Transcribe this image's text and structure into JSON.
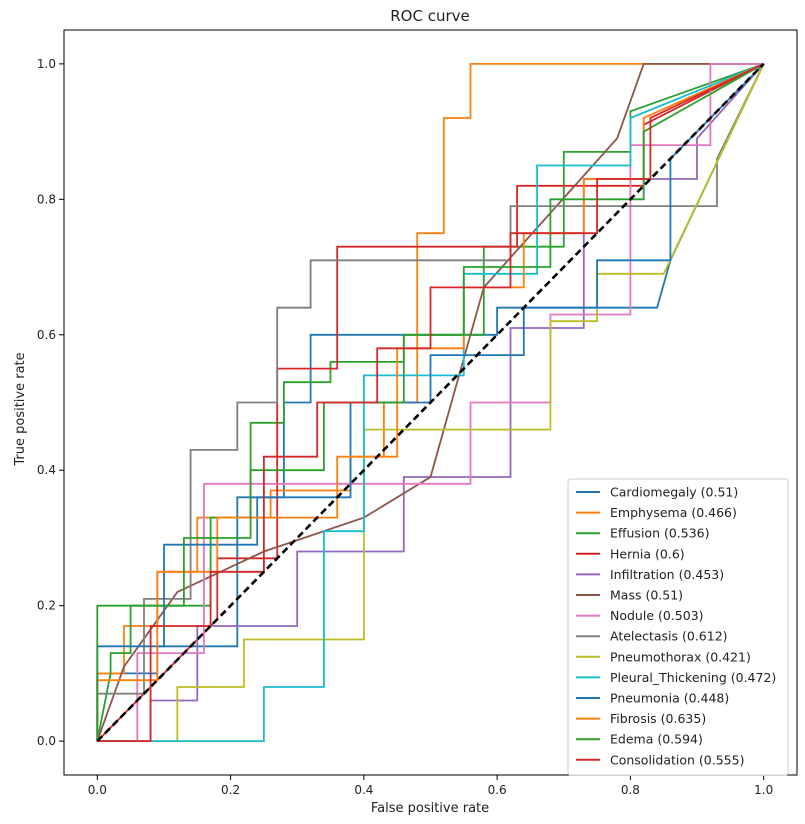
{
  "chart_data": {
    "type": "line",
    "title": "ROC curve",
    "xlabel": "False positive rate",
    "ylabel": "True positive rate",
    "xlim": [
      -0.05,
      1.05
    ],
    "ylim": [
      -0.05,
      1.05
    ],
    "xticks": [
      0.0,
      0.2,
      0.4,
      0.6,
      0.8,
      1.0
    ],
    "yticks": [
      0.0,
      0.2,
      0.4,
      0.6,
      0.8,
      1.0
    ],
    "xtick_labels": [
      "0.0",
      "0.2",
      "0.4",
      "0.6",
      "0.8",
      "1.0"
    ],
    "ytick_labels": [
      "0.0",
      "0.2",
      "0.4",
      "0.6",
      "0.8",
      "1.0"
    ],
    "legend_position": "lower-right",
    "diagonal": {
      "x": [
        0,
        1
      ],
      "y": [
        0,
        1
      ],
      "color": "#000000",
      "style": "dashed"
    },
    "series": [
      {
        "name": "Cardiomegaly (0.51)",
        "color": "#1f77b4",
        "x": [
          0,
          0,
          0.09,
          0.09,
          0.21,
          0.21,
          0.28,
          0.28,
          0.32,
          0.32,
          0.6,
          0.6,
          0.77,
          0.84,
          0.86,
          0.86,
          1.0
        ],
        "y": [
          0,
          0.1,
          0.1,
          0.14,
          0.14,
          0.36,
          0.36,
          0.5,
          0.5,
          0.6,
          0.6,
          0.64,
          0.64,
          0.64,
          0.71,
          0.71,
          1.0
        ]
      },
      {
        "name": "Emphysema (0.466)",
        "color": "#ff7f0e",
        "x": [
          0,
          0,
          0.04,
          0.04,
          0.09,
          0.09,
          0.15,
          0.15,
          0.26,
          0.26,
          0.38,
          0.38,
          0.43,
          0.43,
          0.48,
          0.48,
          0.52,
          0.52,
          0.56,
          0.56,
          0.61,
          0.61,
          0.77,
          0.77,
          0.92,
          1.0
        ],
        "y": [
          0,
          0.1,
          0.1,
          0.17,
          0.17,
          0.25,
          0.25,
          0.33,
          0.33,
          0.37,
          0.37,
          0.42,
          0.42,
          0.5,
          0.5,
          0.75,
          0.75,
          0.92,
          0.92,
          1.0,
          1.0,
          1.0,
          1.0,
          1.0,
          1.0,
          1.0
        ],
        "note": "steps upward quickly to 1.0 around fpr 0.57"
      },
      {
        "name": "Effusion (0.536)",
        "color": "#2ca02c",
        "x": [
          0,
          0.02,
          0.02,
          0.05,
          0.05,
          0.17,
          0.17,
          0.23,
          0.23,
          0.28,
          0.28,
          0.35,
          0.35,
          0.46,
          0.46,
          0.58,
          0.58,
          0.7,
          0.7,
          0.8,
          0.8,
          1.0
        ],
        "y": [
          0,
          0.1,
          0.13,
          0.13,
          0.2,
          0.2,
          0.33,
          0.33,
          0.47,
          0.47,
          0.53,
          0.53,
          0.56,
          0.56,
          0.6,
          0.6,
          0.73,
          0.73,
          0.87,
          0.87,
          0.93,
          1.0
        ]
      },
      {
        "name": "Hernia (0.6)",
        "color": "#d62728",
        "x": [
          0,
          0.18,
          0.18,
          0.27,
          0.27,
          0.36,
          0.36,
          0.42,
          0.42,
          0.55,
          0.55,
          0.63,
          0.63,
          0.82,
          0.82,
          1.0
        ],
        "y": [
          0,
          0.18,
          0.27,
          0.27,
          0.55,
          0.55,
          0.73,
          0.73,
          0.73,
          0.73,
          0.73,
          0.73,
          0.82,
          0.82,
          0.91,
          1.0
        ]
      },
      {
        "name": "Infiltration (0.453)",
        "color": "#9467bd",
        "x": [
          0,
          0.08,
          0.08,
          0.15,
          0.15,
          0.3,
          0.3,
          0.46,
          0.46,
          0.62,
          0.62,
          0.73,
          0.73,
          0.9,
          0.9,
          1.0
        ],
        "y": [
          0,
          0,
          0.06,
          0.06,
          0.17,
          0.17,
          0.28,
          0.28,
          0.39,
          0.39,
          0.61,
          0.61,
          0.83,
          0.83,
          0.89,
          1.0
        ]
      },
      {
        "name": "Mass (0.51)",
        "color": "#8c564b",
        "x": [
          0,
          0.04,
          0.04,
          0.12,
          0.12,
          0.25,
          0.25,
          0.4,
          0.4,
          0.5,
          0.5,
          0.58,
          0.58,
          0.78,
          0.78,
          0.82,
          0.82,
          1.0
        ],
        "y": [
          0,
          0.11,
          0.11,
          0.22,
          0.22,
          0.28,
          0.28,
          0.33,
          0.33,
          0.39,
          0.39,
          0.67,
          0.67,
          0.89,
          0.89,
          1.0,
          1.0,
          1.0
        ]
      },
      {
        "name": "Nodule (0.503)",
        "color": "#e377c2",
        "x": [
          0,
          0.06,
          0.06,
          0.16,
          0.16,
          0.56,
          0.56,
          0.68,
          0.68,
          0.8,
          0.8,
          0.92,
          0.92,
          1.0
        ],
        "y": [
          0,
          0,
          0.13,
          0.13,
          0.38,
          0.38,
          0.5,
          0.5,
          0.63,
          0.63,
          0.88,
          0.88,
          1.0,
          1.0
        ]
      },
      {
        "name": "Atelectasis (0.612)",
        "color": "#7f7f7f",
        "x": [
          0,
          0,
          0.07,
          0.07,
          0.14,
          0.14,
          0.21,
          0.21,
          0.27,
          0.27,
          0.32,
          0.32,
          0.45,
          0.45,
          0.62,
          0.62,
          0.85,
          0.85,
          0.93,
          0.93,
          1.0
        ],
        "y": [
          0,
          0.07,
          0.07,
          0.21,
          0.21,
          0.43,
          0.43,
          0.5,
          0.5,
          0.64,
          0.64,
          0.71,
          0.71,
          0.71,
          0.71,
          0.79,
          0.79,
          0.79,
          0.79,
          0.86,
          1.0
        ]
      },
      {
        "name": "Pneumothorax (0.421)",
        "color": "#bcbd22",
        "x": [
          0,
          0.12,
          0.12,
          0.22,
          0.22,
          0.4,
          0.4,
          0.68,
          0.68,
          0.75,
          0.75,
          0.85,
          1.0
        ],
        "y": [
          0,
          0,
          0.08,
          0.08,
          0.15,
          0.15,
          0.46,
          0.46,
          0.62,
          0.62,
          0.69,
          0.69,
          1.0
        ]
      },
      {
        "name": "Pleural_Thickening (0.472)",
        "color": "#17becf",
        "x": [
          0,
          0.25,
          0.25,
          0.34,
          0.34,
          0.4,
          0.4,
          0.55,
          0.55,
          0.66,
          0.66,
          0.8,
          0.8,
          1.0
        ],
        "y": [
          0,
          0,
          0.08,
          0.08,
          0.31,
          0.31,
          0.54,
          0.54,
          0.69,
          0.69,
          0.85,
          0.85,
          0.92,
          1.0
        ]
      },
      {
        "name": "Pneumonia (0.448)",
        "color": "#1f77b4",
        "x": [
          0,
          0,
          0.1,
          0.1,
          0.24,
          0.24,
          0.38,
          0.38,
          0.5,
          0.5,
          0.64,
          0.64,
          0.75,
          0.75,
          0.86,
          0.86,
          1.0
        ],
        "y": [
          0,
          0.14,
          0.14,
          0.29,
          0.29,
          0.36,
          0.36,
          0.5,
          0.5,
          0.57,
          0.57,
          0.64,
          0.64,
          0.71,
          0.71,
          0.86,
          1.0
        ]
      },
      {
        "name": "Fibrosis (0.635)",
        "color": "#ff7f0e",
        "x": [
          0,
          0,
          0.09,
          0.09,
          0.18,
          0.18,
          0.36,
          0.36,
          0.45,
          0.45,
          0.55,
          0.55,
          0.64,
          0.64,
          0.73,
          0.73,
          0.82,
          0.82,
          1.0
        ],
        "y": [
          0,
          0.09,
          0.09,
          0.25,
          0.25,
          0.33,
          0.33,
          0.42,
          0.42,
          0.58,
          0.58,
          0.67,
          0.67,
          0.75,
          0.75,
          0.83,
          0.83,
          0.92,
          1.0
        ]
      },
      {
        "name": "Edema (0.594)",
        "color": "#2ca02c",
        "x": [
          0,
          0,
          0.13,
          0.13,
          0.23,
          0.23,
          0.34,
          0.34,
          0.46,
          0.46,
          0.55,
          0.55,
          0.68,
          0.68,
          0.82,
          0.82,
          1.0
        ],
        "y": [
          0,
          0.2,
          0.2,
          0.3,
          0.3,
          0.4,
          0.4,
          0.5,
          0.5,
          0.6,
          0.6,
          0.7,
          0.7,
          0.8,
          0.8,
          0.9,
          1.0
        ]
      },
      {
        "name": "Consolidation (0.555)",
        "color": "#d62728",
        "x": [
          0,
          0.08,
          0.08,
          0.17,
          0.17,
          0.25,
          0.25,
          0.33,
          0.33,
          0.42,
          0.42,
          0.5,
          0.5,
          0.62,
          0.62,
          0.75,
          0.75,
          0.83,
          0.83,
          1.0
        ],
        "y": [
          0,
          0,
          0.17,
          0.17,
          0.25,
          0.25,
          0.42,
          0.42,
          0.5,
          0.5,
          0.58,
          0.58,
          0.67,
          0.67,
          0.75,
          0.75,
          0.83,
          0.83,
          0.92,
          1.0
        ]
      }
    ]
  }
}
